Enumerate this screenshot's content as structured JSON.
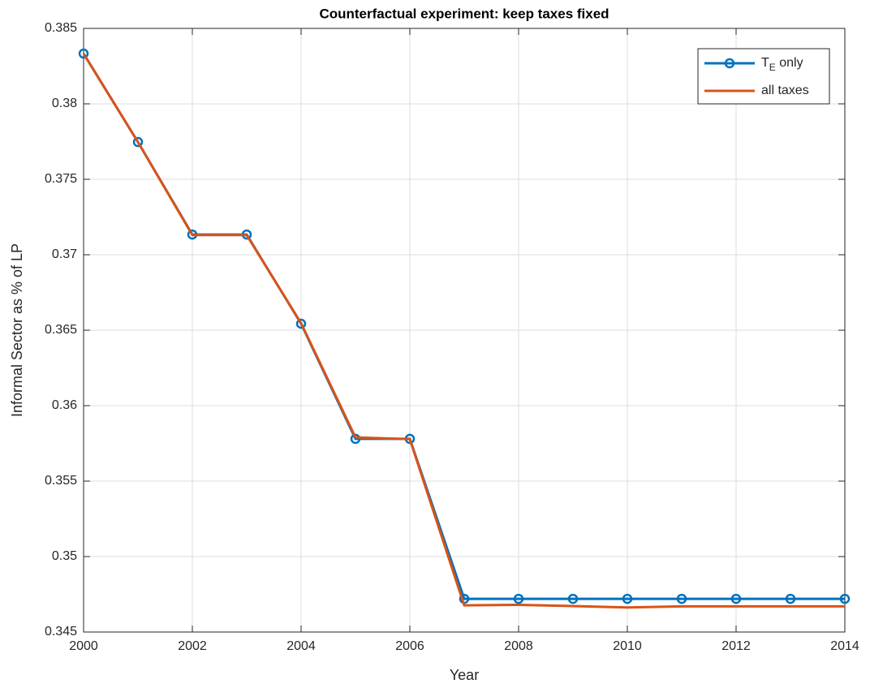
{
  "chart_data": {
    "type": "line",
    "title": "Counterfactual experiment: keep taxes fixed",
    "x_label": "Year",
    "y_label": "Informal Sector as % of LP",
    "x": [
      2000,
      2001,
      2002,
      2003,
      2004,
      2005,
      2006,
      2007,
      2008,
      2009,
      2010,
      2011,
      2012,
      2013,
      2014
    ],
    "series": [
      {
        "name": "T_E only",
        "color": "#0072BD",
        "marker": "circle",
        "values": [
          0.38333,
          0.37747,
          0.37134,
          0.37134,
          0.36543,
          0.3578,
          0.3578,
          0.3472,
          0.3472,
          0.3472,
          0.3472,
          0.3472,
          0.3472,
          0.3472,
          0.3472
        ]
      },
      {
        "name": "all taxes",
        "color": "#D95319",
        "values": [
          0.38333,
          0.37747,
          0.3713,
          0.3713,
          0.36546,
          0.3579,
          0.35778,
          0.34677,
          0.3468,
          0.34672,
          0.34663,
          0.3467,
          0.3467,
          0.3467,
          0.3467
        ]
      }
    ],
    "xlim": [
      2000,
      2014
    ],
    "xticks": [
      2000,
      2002,
      2004,
      2006,
      2008,
      2010,
      2012,
      2014
    ],
    "ylim": [
      0.345,
      0.385
    ],
    "yticks": [
      0.345,
      0.35,
      0.355,
      0.36,
      0.365,
      0.37,
      0.375,
      0.38,
      0.385
    ],
    "grid": true,
    "legend": "top-right"
  }
}
